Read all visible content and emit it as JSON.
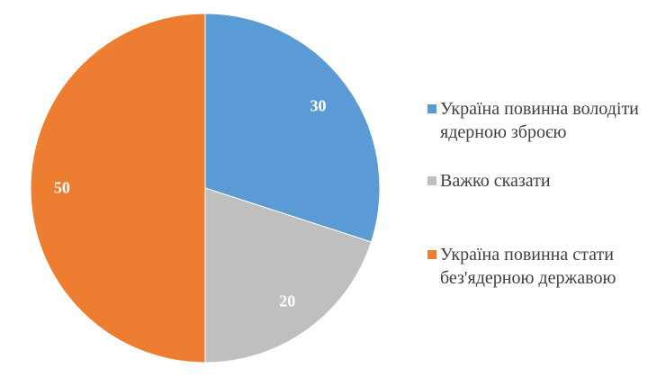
{
  "chart_data": {
    "type": "pie",
    "title": "",
    "categories": [
      "Україна повинна володіти ядерною зброєю",
      "Важко сказати",
      "Україна повинна стати без'ядерною державою"
    ],
    "values": [
      30,
      20,
      50
    ],
    "colors": [
      "#5b9bd5",
      "#bfbfbf",
      "#ed7d31"
    ],
    "data_labels": [
      "30",
      "20",
      "50"
    ],
    "start_angle": "12 o'clock, clockwise",
    "legend_position": "right"
  },
  "labels": {
    "slice0": "30",
    "slice1": "20",
    "slice2": "50"
  },
  "legend": {
    "items": [
      {
        "label": "Україна повинна володіти\nядерною зброєю",
        "color": "#5b9bd5"
      },
      {
        "label": "Важко сказати",
        "color": "#bfbfbf"
      },
      {
        "label": "Україна повинна стати\nбез'ядерною державою",
        "color": "#ed7d31"
      }
    ]
  }
}
